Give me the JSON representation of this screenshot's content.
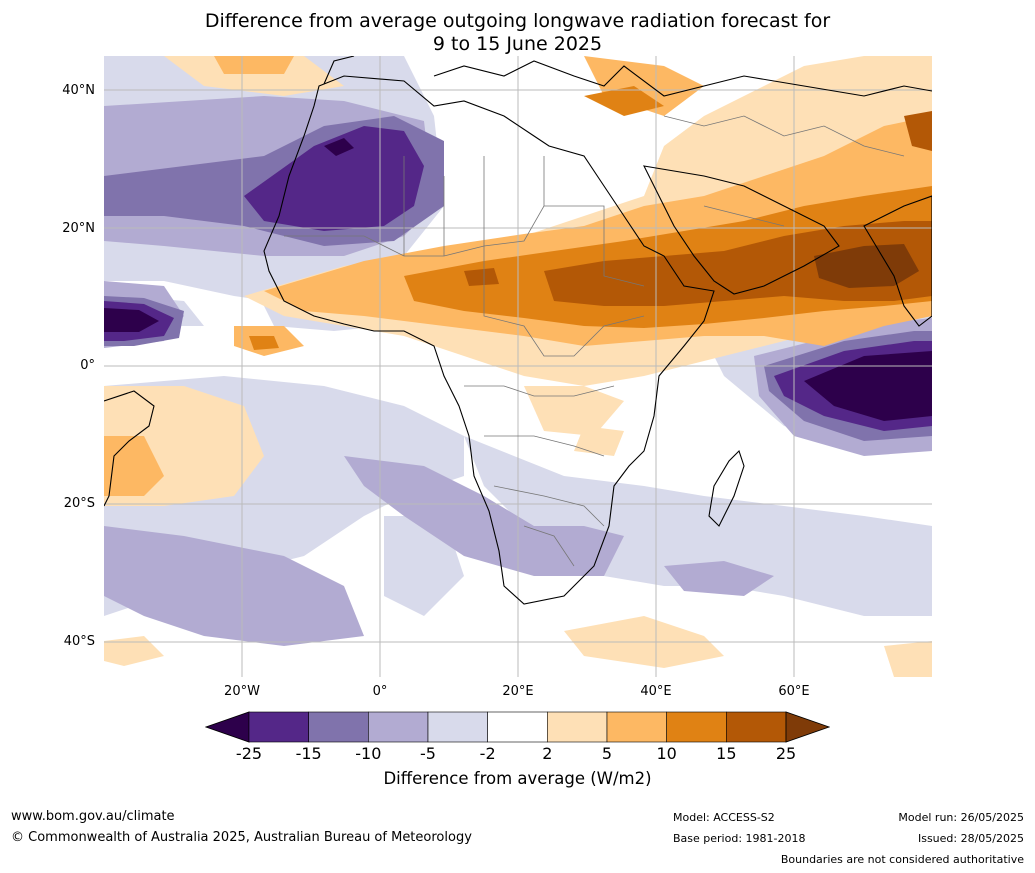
{
  "title": {
    "line1": "Difference from average outgoing longwave radiation forecast for",
    "line2": "9 to 15 June 2025"
  },
  "map": {
    "lat_labels": [
      "40°N",
      "20°N",
      "0°",
      "20°S",
      "40°S"
    ],
    "lon_labels": [
      "20°W",
      "0°",
      "20°E",
      "40°E",
      "60°E"
    ]
  },
  "colorbar": {
    "ticks": [
      "-25",
      "-15",
      "-10",
      "-5",
      "-2",
      "2",
      "5",
      "10",
      "15",
      "25"
    ],
    "colors": [
      "#2d004b",
      "#542788",
      "#8073ac",
      "#b2abd2",
      "#d8daeb",
      "#ffffff",
      "#fee0b6",
      "#fdb863",
      "#e08214",
      "#b35806",
      "#7f3b08"
    ],
    "label": "Difference from average (W/m2)"
  },
  "footer": {
    "website": "www.bom.gov.au/climate",
    "copyright": "© Commonwealth of Australia 2025, Australian Bureau of Meteorology",
    "model": "Model: ACCESS-S2",
    "base_period": "Base period: 1981-2018",
    "model_run": "Model run: 26/05/2025",
    "issued": "Issued: 28/05/2025",
    "boundaries_note": "Boundaries are not considered authoritative"
  }
}
